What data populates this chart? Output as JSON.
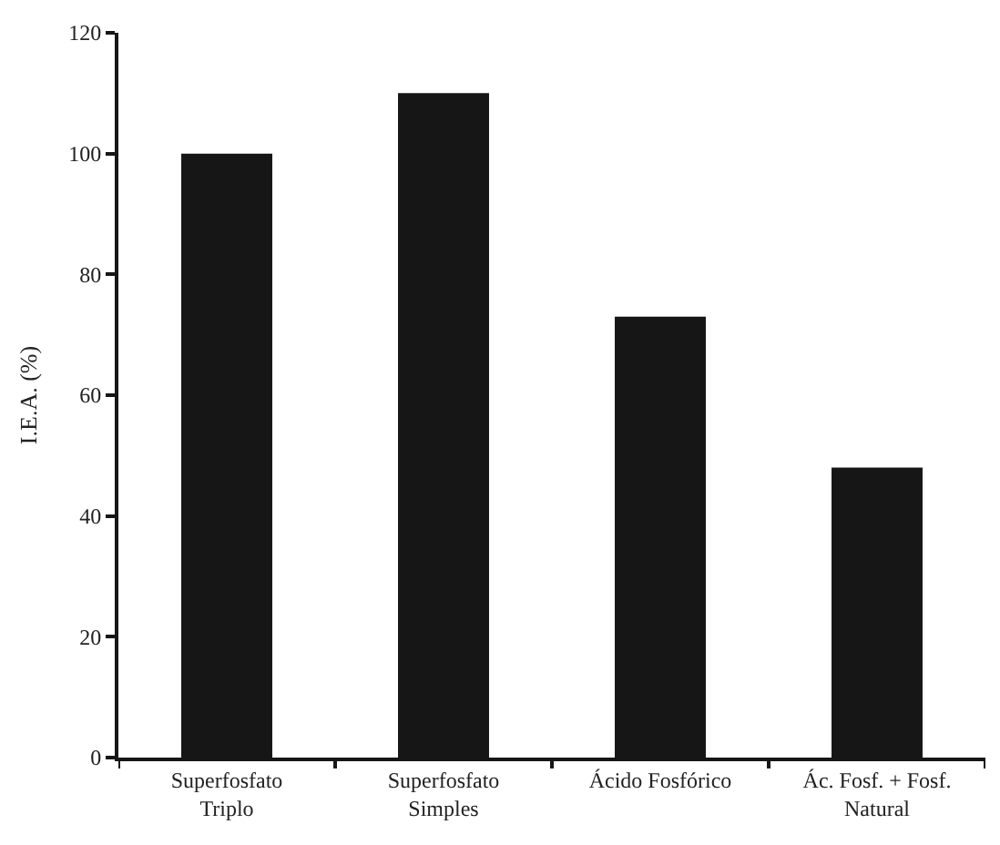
{
  "chart_data": {
    "type": "bar",
    "ylabel": "I.E.A. (%)",
    "categories": [
      "Superfosfato\nTriplo",
      "Superfosfato\nSimples",
      "Ácido Fosfórico",
      "Ác. Fosf. + Fosf.\nNatural"
    ],
    "values": [
      100,
      110,
      73,
      48
    ],
    "color": "#161616",
    "ylim": [
      0,
      120
    ],
    "yticks": [
      0,
      20,
      40,
      60,
      80,
      100,
      120
    ]
  }
}
